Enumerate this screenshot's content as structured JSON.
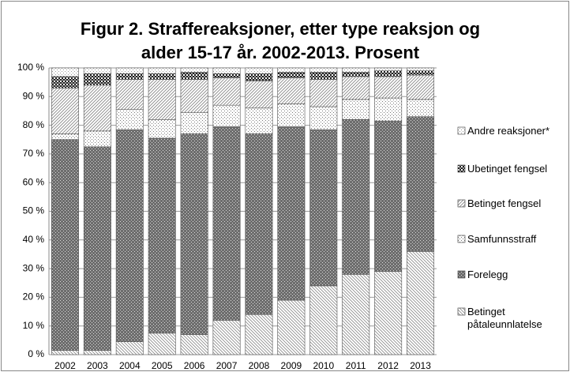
{
  "chart_data": {
    "type": "stacked_bar",
    "title": "Figur 2. Straffereaksjoner, etter type reaksjon og alder 15-17 år. 2002-2013. Prosent",
    "categories": [
      "2002",
      "2003",
      "2004",
      "2005",
      "2006",
      "2007",
      "2008",
      "2009",
      "2010",
      "2011",
      "2012",
      "2013"
    ],
    "series": [
      {
        "name": "Betinget påtaleunnlatelse",
        "color": "#8a8a8a",
        "values": [
          1.5,
          1.5,
          4.5,
          7.5,
          7,
          12,
          14,
          19,
          24,
          28,
          29,
          36
        ]
      },
      {
        "name": "Forelegg",
        "color": "#6e6e6e",
        "values": [
          73.5,
          71,
          74,
          68,
          70,
          67.5,
          63,
          60.5,
          54.5,
          54,
          52.5,
          47
        ]
      },
      {
        "name": "Samfunnsstraff",
        "color": "#777777",
        "values": [
          2,
          5.5,
          7,
          6.5,
          7.5,
          7.5,
          9,
          8,
          8,
          7,
          8,
          6
        ]
      },
      {
        "name": "Betinget fengsel",
        "color": "#888888",
        "values": [
          16,
          16,
          10.5,
          14,
          11.5,
          9.5,
          9.5,
          9,
          9.5,
          8,
          7.5,
          8.5
        ]
      },
      {
        "name": "Ubetinget fengsel",
        "color": "#222222",
        "values": [
          4,
          4,
          2,
          2,
          2.5,
          1.5,
          2.5,
          2,
          2.5,
          1.5,
          2,
          1.5
        ]
      },
      {
        "name": "Andre reaksjoner*",
        "color": "#999999",
        "values": [
          3,
          2,
          2,
          2,
          1.5,
          2,
          2,
          1.5,
          1.5,
          1.5,
          1,
          1
        ]
      }
    ],
    "ylim": [
      0,
      100
    ],
    "yticks": [
      {
        "value": 0,
        "label": "0 %"
      },
      {
        "value": 10,
        "label": "10 %"
      },
      {
        "value": 20,
        "label": "20 %"
      },
      {
        "value": 30,
        "label": "30 %"
      },
      {
        "value": 40,
        "label": "40 %"
      },
      {
        "value": 50,
        "label": "50 %"
      },
      {
        "value": 60,
        "label": "60 %"
      },
      {
        "value": 70,
        "label": "70 %"
      },
      {
        "value": 80,
        "label": "80 %"
      },
      {
        "value": 90,
        "label": "90 %"
      },
      {
        "value": 100,
        "label": "100 %"
      }
    ],
    "grid": true,
    "legend": "right"
  }
}
